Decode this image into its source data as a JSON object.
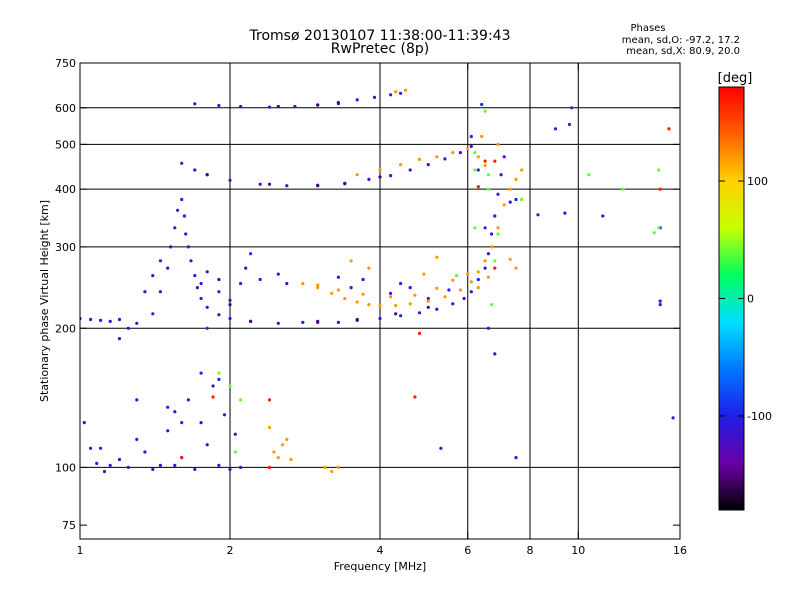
{
  "chart_data": {
    "type": "scatter",
    "title": "Tromsø 20130107 11:38:00-11:39:43",
    "subtitle": "RwPretec (8p)",
    "stats": {
      "heading": "Phases",
      "line1": "mean, sd,O: -97.2, 17.2",
      "line2": "mean, sd,X:  80.9, 20.0"
    },
    "xlabel": "Frequency [MHz]",
    "ylabel": "Stationary phase Virtual Height [km]",
    "x_scale": "log",
    "y_scale": "log",
    "xlim": [
      1,
      16
    ],
    "ylim": [
      70,
      750
    ],
    "x_ticks": [
      1,
      2,
      4,
      6,
      8,
      10,
      16
    ],
    "x_tick_labels": [
      "1",
      "2",
      "4",
      "6",
      "8",
      "10",
      "16"
    ],
    "x_gridlines": [
      2,
      4,
      6,
      8,
      10
    ],
    "y_ticks": [
      75,
      100,
      200,
      300,
      400,
      500,
      600,
      750
    ],
    "y_tick_labels": [
      "75",
      "100",
      "200",
      "300",
      "400",
      "500",
      "600",
      "750"
    ],
    "y_gridlines": [
      100,
      200,
      300,
      400,
      500,
      600
    ],
    "grid": true,
    "colorbar": {
      "label": "[deg]",
      "min": -180,
      "max": 180,
      "ticks": [
        100,
        0,
        -100
      ],
      "tick_labels": [
        "100",
        "0",
        "-100"
      ],
      "stops": [
        "#000000",
        "#6a00a8",
        "#1e1ee8",
        "#0078ff",
        "#00e0ff",
        "#00ff60",
        "#c8ff00",
        "#ffd000",
        "#ff6000",
        "#ff0000"
      ],
      "placement": "right"
    },
    "series": [
      {
        "color_value": -110,
        "points": [
          [
            1.0,
            210
          ],
          [
            1.05,
            209
          ],
          [
            1.1,
            208
          ],
          [
            1.15,
            207
          ],
          [
            1.2,
            209
          ],
          [
            1.3,
            205
          ],
          [
            1.4,
            215
          ],
          [
            1.45,
            240
          ],
          [
            1.5,
            270
          ],
          [
            1.52,
            300
          ],
          [
            1.55,
            330
          ],
          [
            1.57,
            360
          ],
          [
            1.6,
            380
          ],
          [
            1.62,
            350
          ],
          [
            1.63,
            320
          ],
          [
            1.65,
            300
          ],
          [
            1.67,
            280
          ],
          [
            1.7,
            260
          ],
          [
            1.72,
            245
          ],
          [
            1.75,
            232
          ],
          [
            1.8,
            222
          ],
          [
            1.9,
            214
          ],
          [
            2.0,
            210
          ],
          [
            2.2,
            207
          ],
          [
            2.5,
            205
          ],
          [
            2.8,
            206
          ],
          [
            3.0,
            206
          ],
          [
            3.3,
            206
          ],
          [
            3.6,
            208
          ],
          [
            4.0,
            210
          ],
          [
            4.4,
            213
          ],
          [
            4.8,
            216
          ],
          [
            5.2,
            220
          ],
          [
            5.6,
            226
          ],
          [
            5.9,
            232
          ],
          [
            6.1,
            240
          ],
          [
            6.3,
            255
          ],
          [
            6.5,
            270
          ],
          [
            6.6,
            290
          ],
          [
            6.7,
            320
          ],
          [
            6.8,
            350
          ],
          [
            6.9,
            390
          ],
          [
            7.0,
            430
          ],
          [
            7.1,
            470
          ],
          [
            1.6,
            455
          ],
          [
            1.7,
            440
          ],
          [
            1.8,
            430
          ],
          [
            2.0,
            418
          ],
          [
            2.3,
            410
          ],
          [
            2.6,
            407
          ],
          [
            3.0,
            407
          ],
          [
            3.4,
            412
          ],
          [
            3.8,
            420
          ],
          [
            4.2,
            428
          ],
          [
            4.6,
            440
          ],
          [
            5.0,
            452
          ],
          [
            5.4,
            465
          ],
          [
            5.8,
            480
          ],
          [
            6.1,
            495
          ],
          [
            1.7,
            612
          ],
          [
            1.9,
            607
          ],
          [
            2.1,
            604
          ],
          [
            2.4,
            602
          ],
          [
            2.7,
            604
          ],
          [
            3.0,
            609
          ],
          [
            3.3,
            616
          ],
          [
            3.6,
            624
          ],
          [
            3.9,
            632
          ],
          [
            4.2,
            640
          ],
          [
            4.4,
            645
          ],
          [
            1.02,
            125
          ],
          [
            1.05,
            110
          ],
          [
            1.08,
            102
          ],
          [
            1.12,
            98
          ],
          [
            1.15,
            101
          ],
          [
            1.2,
            104
          ],
          [
            1.25,
            100
          ],
          [
            1.3,
            115
          ],
          [
            1.35,
            108
          ],
          [
            1.4,
            99
          ],
          [
            1.5,
            120
          ],
          [
            1.55,
            132
          ],
          [
            1.6,
            105
          ],
          [
            1.65,
            140
          ],
          [
            1.7,
            99
          ],
          [
            1.75,
            125
          ],
          [
            1.8,
            112
          ],
          [
            1.85,
            150
          ],
          [
            1.9,
            101
          ],
          [
            1.95,
            130
          ],
          [
            2.0,
            99
          ],
          [
            2.05,
            118
          ],
          [
            2.1,
            100
          ],
          [
            1.45,
            101
          ],
          [
            1.3,
            140
          ],
          [
            1.55,
            101
          ],
          [
            1.2,
            190
          ],
          [
            1.25,
            200
          ],
          [
            1.35,
            240
          ],
          [
            1.4,
            260
          ],
          [
            1.45,
            280
          ],
          [
            1.75,
            250
          ],
          [
            1.8,
            265
          ],
          [
            1.9,
            240
          ],
          [
            2.0,
            230
          ],
          [
            2.1,
            250
          ],
          [
            2.15,
            270
          ],
          [
            2.3,
            255
          ],
          [
            2.5,
            262
          ],
          [
            2.6,
            250
          ],
          [
            3.3,
            258
          ],
          [
            3.5,
            245
          ],
          [
            3.7,
            255
          ],
          [
            4.2,
            238
          ],
          [
            4.4,
            250
          ],
          [
            4.6,
            245
          ],
          [
            5.0,
            232
          ],
          [
            5.5,
            242
          ],
          [
            6.6,
            200
          ],
          [
            6.8,
            176
          ],
          [
            7.3,
            375
          ],
          [
            7.5,
            380
          ],
          [
            8.3,
            352
          ],
          [
            9.4,
            355
          ],
          [
            11.2,
            350
          ],
          [
            14.6,
            330
          ],
          [
            14.6,
            229
          ],
          [
            14.6,
            225
          ],
          [
            15.5,
            128
          ],
          [
            5.3,
            110
          ],
          [
            7.5,
            105
          ]
        ]
      },
      {
        "color_value": -150,
        "points": [
          [
            1.8,
            430
          ],
          [
            2.4,
            410
          ],
          [
            3.0,
            408
          ],
          [
            3.4,
            411
          ],
          [
            4.0,
            425
          ],
          [
            2.5,
            604
          ],
          [
            3.0,
            608
          ],
          [
            3.3,
            613
          ],
          [
            2.2,
            207
          ],
          [
            3.0,
            207
          ],
          [
            3.6,
            209
          ],
          [
            4.3,
            215
          ],
          [
            1.9,
            255
          ],
          [
            2.0,
            225
          ],
          [
            5.0,
            222
          ]
        ]
      },
      {
        "color_value": -95,
        "points": [
          [
            1.5,
            135
          ],
          [
            1.6,
            125
          ],
          [
            1.75,
            160
          ],
          [
            1.9,
            155
          ],
          [
            1.1,
            110
          ],
          [
            1.8,
            200
          ],
          [
            2.2,
            290
          ],
          [
            6.4,
            610
          ],
          [
            6.1,
            520
          ],
          [
            6.3,
            440
          ],
          [
            6.5,
            330
          ],
          [
            9.7,
            600
          ],
          [
            9.0,
            540
          ],
          [
            9.6,
            552
          ]
        ]
      },
      {
        "color_value": 120,
        "points": [
          [
            2.8,
            250
          ],
          [
            3.0,
            245
          ],
          [
            3.2,
            238
          ],
          [
            3.4,
            232
          ],
          [
            3.6,
            228
          ],
          [
            3.8,
            225
          ],
          [
            4.0,
            224
          ],
          [
            4.3,
            224
          ],
          [
            4.6,
            226
          ],
          [
            5.0,
            229
          ],
          [
            5.4,
            234
          ],
          [
            5.8,
            242
          ],
          [
            6.1,
            252
          ],
          [
            6.3,
            265
          ],
          [
            6.5,
            280
          ],
          [
            6.7,
            300
          ],
          [
            6.9,
            330
          ],
          [
            7.1,
            370
          ],
          [
            7.3,
            400
          ],
          [
            7.5,
            420
          ],
          [
            7.7,
            440
          ],
          [
            3.0,
            248
          ],
          [
            3.3,
            242
          ],
          [
            3.7,
            237
          ],
          [
            4.2,
            234
          ],
          [
            4.7,
            236
          ],
          [
            5.2,
            244
          ],
          [
            5.6,
            254
          ],
          [
            6.0,
            262
          ],
          [
            6.3,
            245
          ],
          [
            6.6,
            258
          ],
          [
            3.6,
            430
          ],
          [
            4.0,
            440
          ],
          [
            4.4,
            452
          ],
          [
            4.8,
            464
          ],
          [
            5.2,
            470
          ],
          [
            5.6,
            480
          ],
          [
            6.0,
            490
          ],
          [
            6.3,
            470
          ],
          [
            6.5,
            450
          ],
          [
            6.4,
            520
          ],
          [
            6.9,
            500
          ],
          [
            2.4,
            122
          ],
          [
            2.45,
            108
          ],
          [
            2.5,
            105
          ],
          [
            2.55,
            112
          ],
          [
            2.6,
            115
          ],
          [
            2.65,
            104
          ],
          [
            3.1,
            100
          ],
          [
            3.2,
            98
          ],
          [
            3.3,
            100
          ],
          [
            4.5,
            655
          ],
          [
            4.3,
            650
          ],
          [
            3.5,
            280
          ],
          [
            3.8,
            270
          ],
          [
            4.9,
            262
          ],
          [
            5.2,
            285
          ],
          [
            7.3,
            282
          ],
          [
            7.5,
            270
          ]
        ]
      },
      {
        "color_value": 40,
        "points": [
          [
            1.9,
            160
          ],
          [
            2.0,
            150
          ],
          [
            2.1,
            140
          ],
          [
            2.05,
            108
          ],
          [
            6.2,
            440
          ],
          [
            6.6,
            430
          ],
          [
            6.6,
            400
          ],
          [
            6.9,
            320
          ],
          [
            5.7,
            260
          ],
          [
            7.7,
            380
          ],
          [
            14.5,
            440
          ],
          [
            14.5,
            330
          ],
          [
            14.2,
            322
          ],
          [
            12.3,
            400
          ],
          [
            10.5,
            430
          ],
          [
            6.5,
            590
          ],
          [
            6.2,
            480
          ],
          [
            6.2,
            330
          ],
          [
            6.8,
            280
          ],
          [
            6.7,
            225
          ]
        ]
      },
      {
        "color_value": 170,
        "points": [
          [
            1.6,
            105
          ],
          [
            1.85,
            142
          ],
          [
            2.4,
            140
          ],
          [
            4.8,
            195
          ],
          [
            4.7,
            142
          ],
          [
            6.8,
            270
          ],
          [
            6.5,
            460
          ],
          [
            6.8,
            460
          ],
          [
            14.6,
            400
          ],
          [
            15.2,
            540
          ],
          [
            6.3,
            405
          ],
          [
            2.4,
            100
          ]
        ]
      }
    ]
  }
}
